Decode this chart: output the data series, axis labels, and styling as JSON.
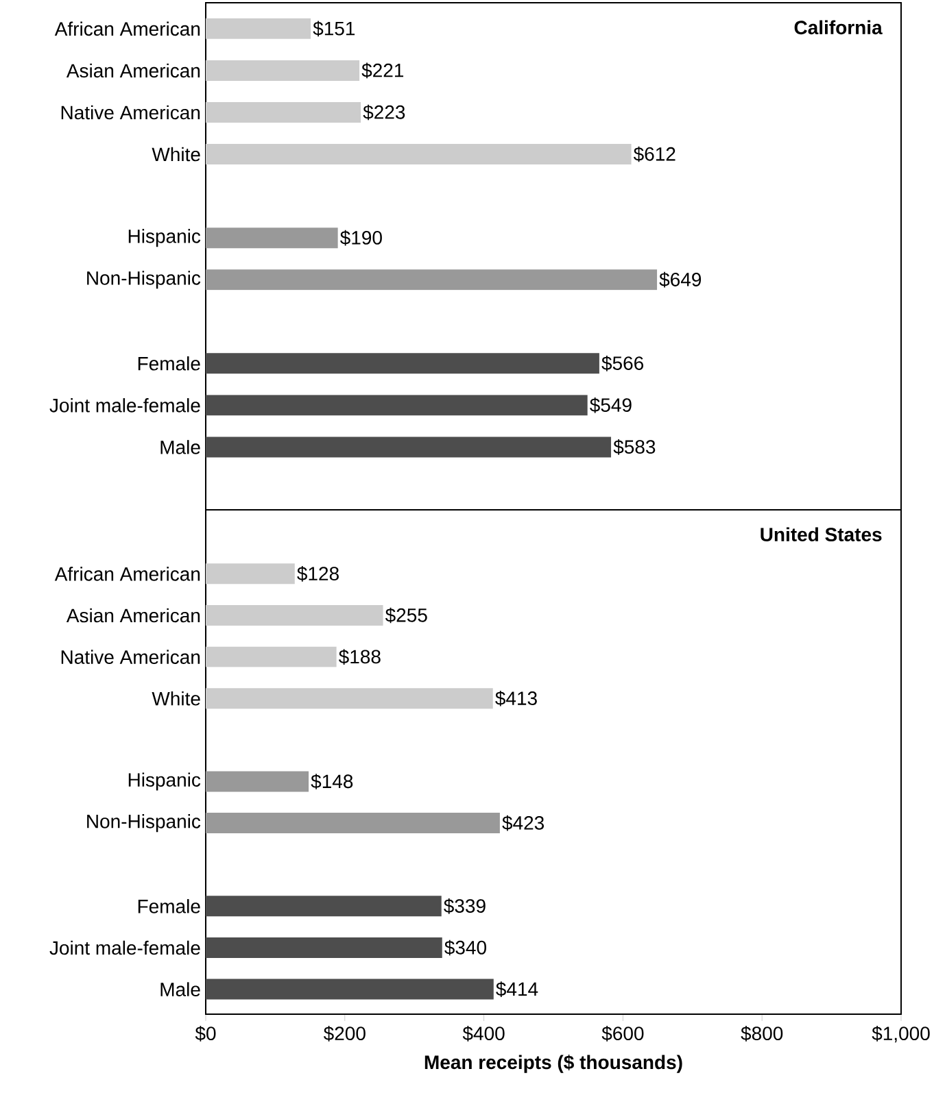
{
  "chart_data": [
    {
      "type": "bar",
      "orientation": "horizontal",
      "title": "California",
      "categories": [
        "African American",
        "Asian American",
        "Native American",
        "White",
        null,
        "Hispanic",
        "Non-Hispanic",
        null,
        "Female",
        "Joint male-female",
        "Male"
      ],
      "values": [
        151,
        221,
        223,
        612,
        null,
        190,
        649,
        null,
        566,
        549,
        583
      ],
      "colors": [
        "#cccccc",
        "#cccccc",
        "#cccccc",
        "#cccccc",
        null,
        "#999999",
        "#999999",
        null,
        "#4d4d4d",
        "#4d4d4d",
        "#4d4d4d"
      ],
      "value_labels": [
        "$151",
        "$221",
        "$223",
        "$612",
        null,
        "$190",
        "$649",
        null,
        "$566",
        "$549",
        "$583"
      ],
      "xlim": [
        0,
        1000
      ],
      "tick_labels": "y"
    },
    {
      "type": "bar",
      "orientation": "horizontal",
      "title": "United States",
      "categories": [
        "African American",
        "Asian American",
        "Native American",
        "White",
        null,
        "Hispanic",
        "Non-Hispanic",
        null,
        "Female",
        "Joint male-female",
        "Male"
      ],
      "values": [
        128,
        255,
        188,
        413,
        null,
        148,
        423,
        null,
        339,
        340,
        414
      ],
      "colors": [
        "#cccccc",
        "#cccccc",
        "#cccccc",
        "#cccccc",
        null,
        "#999999",
        "#999999",
        null,
        "#4d4d4d",
        "#4d4d4d",
        "#4d4d4d"
      ],
      "value_labels": [
        "$128",
        "$255",
        "$188",
        "$413",
        null,
        "$148",
        "$423",
        null,
        "$339",
        "$340",
        "$414"
      ],
      "xlim": [
        0,
        1000
      ],
      "xticks": [
        {
          "value": 0,
          "label": "$0"
        },
        {
          "value": 200,
          "label": "$200"
        },
        {
          "value": 400,
          "label": "$400"
        },
        {
          "value": 600,
          "label": "$600"
        },
        {
          "value": 800,
          "label": "$800"
        },
        {
          "value": 1000,
          "label": "$1,000"
        }
      ],
      "xlabel": "Mean receipts ($ thousands)"
    }
  ]
}
